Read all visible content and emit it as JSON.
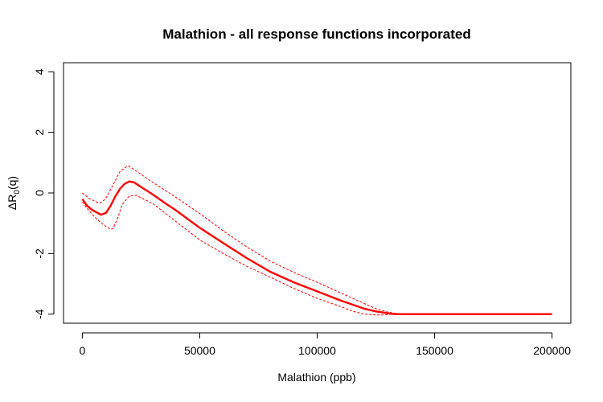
{
  "chart_data": {
    "type": "line",
    "title": "Malathion - all response functions incorporated",
    "xlabel": "Malathion (ppb)",
    "ylabel": {
      "prefix": "ΔR",
      "subscript": "0",
      "suffix": "(q)"
    },
    "xlim": [
      -8000,
      208000
    ],
    "ylim": [
      -4.3,
      4.3
    ],
    "xticks": [
      0,
      50000,
      100000,
      150000,
      200000
    ],
    "yticks": [
      -4,
      -2,
      0,
      2,
      4
    ],
    "grid": false,
    "color": "#ff0000",
    "series": [
      {
        "role": "estimate",
        "x": [
          0,
          2000,
          4000,
          6000,
          8000,
          10000,
          12000,
          14000,
          16000,
          18000,
          20000,
          22000,
          25000,
          30000,
          35000,
          40000,
          50000,
          60000,
          70000,
          80000,
          90000,
          100000,
          110000,
          120000,
          125000,
          130000,
          133000,
          140000,
          150000,
          175000,
          200000
        ],
        "y": [
          -0.2,
          -0.42,
          -0.55,
          -0.64,
          -0.72,
          -0.66,
          -0.43,
          -0.12,
          0.13,
          0.3,
          0.38,
          0.35,
          0.2,
          -0.05,
          -0.32,
          -0.58,
          -1.15,
          -1.65,
          -2.15,
          -2.6,
          -2.95,
          -3.25,
          -3.55,
          -3.82,
          -3.91,
          -3.97,
          -4.0,
          -4.0,
          -4.0,
          -4.0,
          -4.0
        ]
      },
      {
        "role": "upper",
        "x": [
          0,
          3000,
          6000,
          8000,
          10000,
          13000,
          16000,
          19000,
          20000,
          23000,
          30000,
          40000,
          50000,
          60000,
          70000,
          80000,
          90000,
          100000,
          110000,
          120000,
          125000,
          130000,
          135000
        ],
        "y": [
          0.0,
          -0.18,
          -0.3,
          -0.32,
          -0.18,
          0.25,
          0.7,
          0.88,
          0.88,
          0.72,
          0.35,
          -0.15,
          -0.68,
          -1.25,
          -1.78,
          -2.25,
          -2.62,
          -2.95,
          -3.3,
          -3.65,
          -3.82,
          -3.93,
          -4.0
        ]
      },
      {
        "role": "lower",
        "x": [
          0,
          3000,
          6000,
          9000,
          12000,
          13000,
          15000,
          17000,
          20000,
          23000,
          30000,
          40000,
          50000,
          60000,
          70000,
          80000,
          90000,
          100000,
          110000,
          115000,
          120000,
          125000,
          128000,
          132000
        ],
        "y": [
          -0.3,
          -0.6,
          -0.85,
          -1.05,
          -1.2,
          -1.18,
          -0.85,
          -0.38,
          -0.1,
          -0.08,
          -0.35,
          -0.95,
          -1.55,
          -2.0,
          -2.42,
          -2.78,
          -3.15,
          -3.48,
          -3.75,
          -3.9,
          -4.0,
          -4.03,
          -4.03,
          -4.0
        ]
      }
    ]
  }
}
